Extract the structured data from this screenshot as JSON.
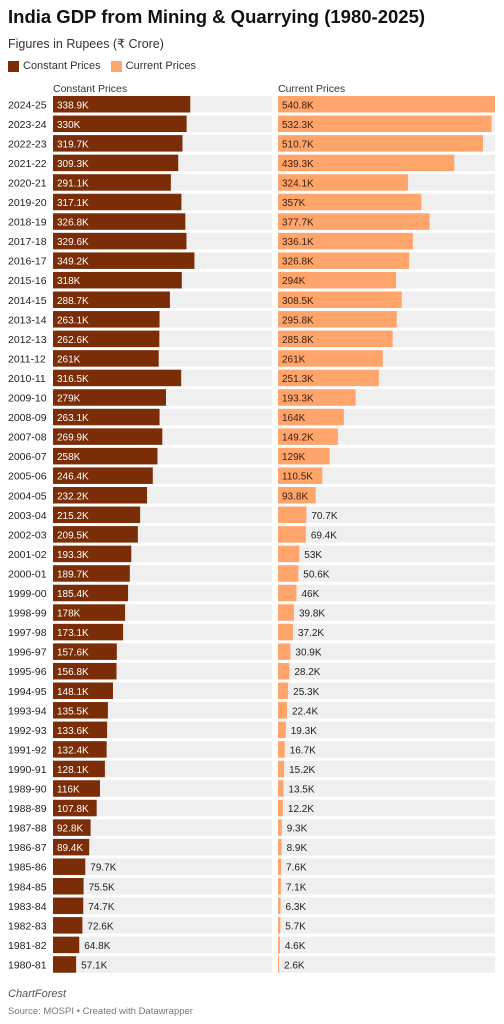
{
  "header": {
    "title": "India GDP from Mining & Quarrying (1980-2025)",
    "subtitle": "Figures in Rupees (₹ Crore)"
  },
  "legend": [
    {
      "label": "Constant Prices",
      "color": "#7a2d06"
    },
    {
      "label": "Current Prices",
      "color": "#ffa46b"
    }
  ],
  "chart_data": {
    "type": "bar",
    "orientation": "horizontal",
    "layout": "split-bars",
    "categories": [
      "2024-25",
      "2023-24",
      "2022-23",
      "2021-22",
      "2020-21",
      "2019-20",
      "2018-19",
      "2017-18",
      "2016-17",
      "2015-16",
      "2014-15",
      "2013-14",
      "2012-13",
      "2011-12",
      "2010-11",
      "2009-10",
      "2008-09",
      "2007-08",
      "2006-07",
      "2005-06",
      "2004-05",
      "2003-04",
      "2002-03",
      "2001-02",
      "2000-01",
      "1999-00",
      "1998-99",
      "1997-98",
      "1996-97",
      "1995-96",
      "1994-95",
      "1993-94",
      "1992-93",
      "1991-92",
      "1990-91",
      "1989-90",
      "1988-89",
      "1987-88",
      "1986-87",
      "1985-86",
      "1984-85",
      "1983-84",
      "1982-83",
      "1981-82",
      "1980-81"
    ],
    "series": [
      {
        "name": "Constant Prices",
        "color": "#7a2d06",
        "values": [
          338900,
          330000,
          319700,
          309300,
          291100,
          317100,
          326800,
          329600,
          349200,
          318000,
          288700,
          263100,
          262600,
          261000,
          316500,
          279000,
          263100,
          269900,
          258000,
          246400,
          232200,
          215200,
          209500,
          193300,
          189700,
          185400,
          178000,
          173100,
          157600,
          156800,
          148100,
          135500,
          133600,
          132400,
          128100,
          116000,
          107800,
          92800,
          89400,
          79700,
          75500,
          74700,
          72600,
          64800,
          57100
        ],
        "labels": [
          "338.9K",
          "330K",
          "319.7K",
          "309.3K",
          "291.1K",
          "317.1K",
          "326.8K",
          "329.6K",
          "349.2K",
          "318K",
          "288.7K",
          "263.1K",
          "262.6K",
          "261K",
          "316.5K",
          "279K",
          "263.1K",
          "269.9K",
          "258K",
          "246.4K",
          "232.2K",
          "215.2K",
          "209.5K",
          "193.3K",
          "189.7K",
          "185.4K",
          "178K",
          "173.1K",
          "157.6K",
          "156.8K",
          "148.1K",
          "135.5K",
          "133.6K",
          "132.4K",
          "128.1K",
          "116K",
          "107.8K",
          "92.8K",
          "89.4K",
          "79.7K",
          "75.5K",
          "74.7K",
          "72.6K",
          "64.8K",
          "57.1K"
        ]
      },
      {
        "name": "Current Prices",
        "color": "#ffa46b",
        "values": [
          540800,
          532300,
          510700,
          439300,
          324100,
          357000,
          377700,
          336100,
          326800,
          294000,
          308500,
          295800,
          285800,
          261000,
          251300,
          193300,
          164000,
          149200,
          129000,
          110500,
          93800,
          70700,
          69400,
          53000,
          50600,
          46000,
          39800,
          37200,
          30900,
          28200,
          25300,
          22400,
          19300,
          16700,
          15200,
          13500,
          12200,
          9300,
          8900,
          7600,
          7100,
          6300,
          5700,
          4600,
          2600
        ],
        "labels": [
          "540.8K",
          "532.3K",
          "510.7K",
          "439.3K",
          "324.1K",
          "357K",
          "377.7K",
          "336.1K",
          "326.8K",
          "294K",
          "308.5K",
          "295.8K",
          "285.8K",
          "261K",
          "251.3K",
          "193.3K",
          "164K",
          "149.2K",
          "129K",
          "110.5K",
          "93.8K",
          "70.7K",
          "69.4K",
          "53K",
          "50.6K",
          "46K",
          "39.8K",
          "37.2K",
          "30.9K",
          "28.2K",
          "25.3K",
          "22.4K",
          "19.3K",
          "16.7K",
          "15.2K",
          "13.5K",
          "12.2K",
          "9.3K",
          "8.9K",
          "7.6K",
          "7.1K",
          "6.3K",
          "5.7K",
          "4.6K",
          "2.6K"
        ]
      }
    ],
    "column_headers": [
      "Constant Prices",
      "Current Prices"
    ],
    "xlim": [
      0,
      540800
    ],
    "legend_position": "top-left",
    "grid": false
  },
  "footer": {
    "brand": "ChartForest",
    "source": "Source: MOSPI • Created with Datawrapper"
  }
}
